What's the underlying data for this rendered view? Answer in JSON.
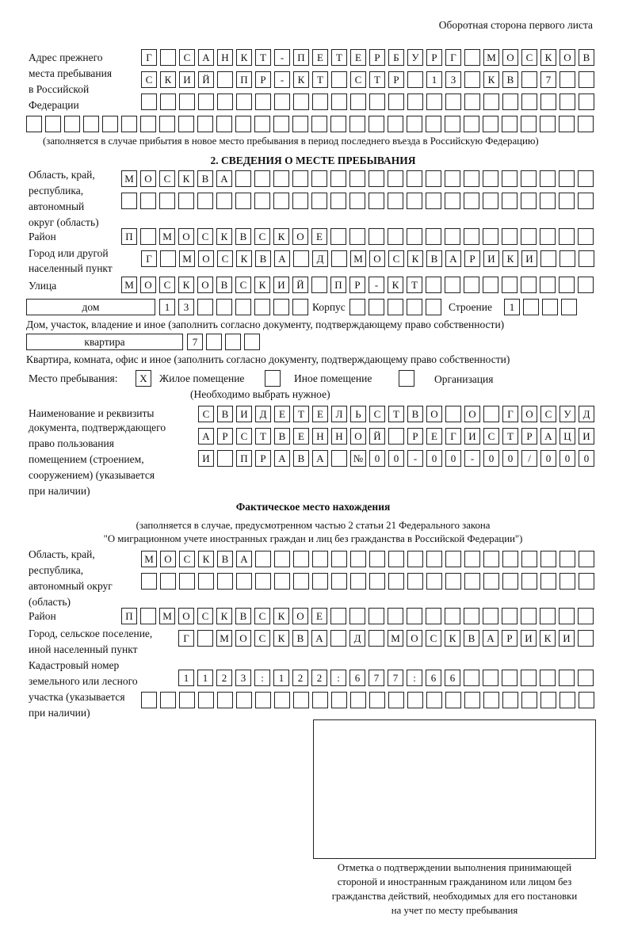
{
  "header": {
    "title": "Оборотная сторона первого листа"
  },
  "previous_address": {
    "label": [
      "Адрес прежнего",
      "места пребывания",
      "в Российской",
      "Федерации"
    ],
    "rows": [
      "Г САНКТ-ПЕТЕРБУРГ МОСКОВ",
      "СКИЙ ПР-КТ СТР 13 КВ 7  ",
      "                        ",
      "                              "
    ],
    "note": "(заполняется в случае прибытия в новое место пребывания в период последнего въезда в Российскую Федерацию)"
  },
  "section2": {
    "title": "2. СВЕДЕНИЯ О МЕСТЕ ПРЕБЫВАНИЯ",
    "region_label": [
      "Область, край,",
      "республика,",
      "автономный",
      "округ (область)"
    ],
    "region_rows": [
      "МОСКВА                   ",
      "                         "
    ],
    "district_label": "Район",
    "district_row": "П МОСКВСКОЕ              ",
    "city_label": [
      "Город или другой",
      "населенный пункт"
    ],
    "city_row": "Г МОСКВА Д МОСКВАРИКИ   ",
    "street_label": "Улица",
    "street_row": "МОСКОВСКИЙ ПР-КТ         ",
    "house_type": "дом",
    "house_cells": "13      ",
    "korpus_label": "Корпус",
    "korpus_cells": "     ",
    "building_label": "Строение",
    "building_cells": "1   ",
    "house_note": "Дом, участок, владение и иное (заполнить согласно документу, подтверждающему право собственности)",
    "apt_type": "квартира",
    "apt_cells": "7   ",
    "apt_note": "Квартира, комната, офис и иное (заполнить согласно документу, подтверждающему право собственности)",
    "place_label": "Место пребывания:",
    "place_options": [
      {
        "mark": "X",
        "label": "Жилое помещение"
      },
      {
        "mark": "",
        "label": "Иное помещение"
      },
      {
        "mark": "",
        "label": "Организация"
      }
    ],
    "place_note": "(Необходимо выбрать нужное)",
    "doc_label": [
      "Наименование и реквизиты",
      "документа, подтверждающего",
      "право пользования",
      "помещением (строением,",
      "сооружением) (указывается",
      "при наличии)"
    ],
    "doc_rows": [
      "СВИДЕТЕЛЬСТВО О ГОСУД",
      "АРСТВЕННОЙ РЕГИСТРАЦИ",
      "И ПРАВА №00-00-00/000"
    ]
  },
  "actual": {
    "title": "Фактическое место нахождения",
    "note": [
      "(заполняется в случае, предусмотренном частью 2 статьи 21 Федерального закона",
      "\"О миграционном учете иностранных граждан и лиц без гражданства в Российской Федерации\")"
    ],
    "region_label": [
      "Область, край,",
      "республика,",
      "автономный округ",
      "(область)"
    ],
    "region_rows": [
      "МОСКВА                  ",
      "                        "
    ],
    "district_label": "Район",
    "district_row": "П МОСКВСКОЕ              ",
    "city_label": [
      "Город, сельское поселение,",
      "иной населенный пункт"
    ],
    "city_row": "Г МОСКВА Д МОСКВАРИКИ ",
    "cadastre_label": [
      "Кадастровый номер",
      "земельного или лесного",
      "участка (указывается",
      "при наличии)"
    ],
    "cadastre_rows": [
      "1123:122:677:66       ",
      "                        "
    ]
  },
  "confirmation": {
    "caption": [
      "Отметка о подтверждении выполнения принимающей",
      "стороной и иностранным гражданином или лицом без",
      "гражданства действий, необходимых для его постановки",
      "на учет по месту пребывания"
    ]
  }
}
